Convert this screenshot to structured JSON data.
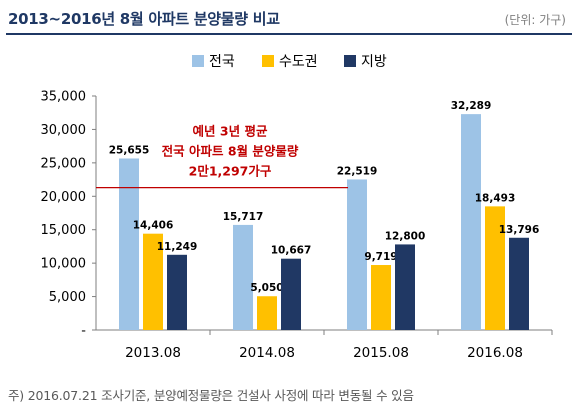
{
  "header": {
    "title": "2013~2016년 8월 아파트 분양물량 비교",
    "unit": "(단위: 가구)"
  },
  "footnote": "주) 2016.07.21 조사기준, 분양예정물량은 건설사 사정에 따라 변동될 수 있음",
  "colors": {
    "title": "#1f3864",
    "nationwide": "#9dc3e6",
    "capital": "#ffc000",
    "regional": "#203864",
    "avg_line": "#c00000",
    "annotation_text": "#c00000"
  },
  "chart_data": {
    "type": "bar",
    "categories": [
      "2013.08",
      "2014.08",
      "2015.08",
      "2016.08"
    ],
    "series": [
      {
        "name": "전국",
        "values": [
          25655,
          15717,
          22519,
          32289
        ],
        "labels": [
          "25,655",
          "15,717",
          "22,519",
          "32,289"
        ]
      },
      {
        "name": "수도권",
        "values": [
          14406,
          5050,
          9719,
          18493
        ],
        "labels": [
          "14,406",
          "5,050",
          "9,719",
          "18,493"
        ]
      },
      {
        "name": "지방",
        "values": [
          11249,
          10667,
          12800,
          13796
        ],
        "labels": [
          "11,249",
          "10,667",
          "12,800",
          "13,796"
        ]
      }
    ],
    "ylim": [
      0,
      35000
    ],
    "yticks": [
      0,
      5000,
      10000,
      15000,
      20000,
      25000,
      30000,
      35000
    ],
    "ytick_labels": [
      "-",
      "5,000",
      "10,000",
      "15,000",
      "20,000",
      "25,000",
      "30,000",
      "35,000"
    ],
    "legend_position": "top-center",
    "grid": false,
    "reference_line": {
      "value": 21297
    },
    "annotation": [
      "예년 3년 평균",
      "전국 아파트 8월 분양물량",
      "2만1,297가구"
    ]
  }
}
